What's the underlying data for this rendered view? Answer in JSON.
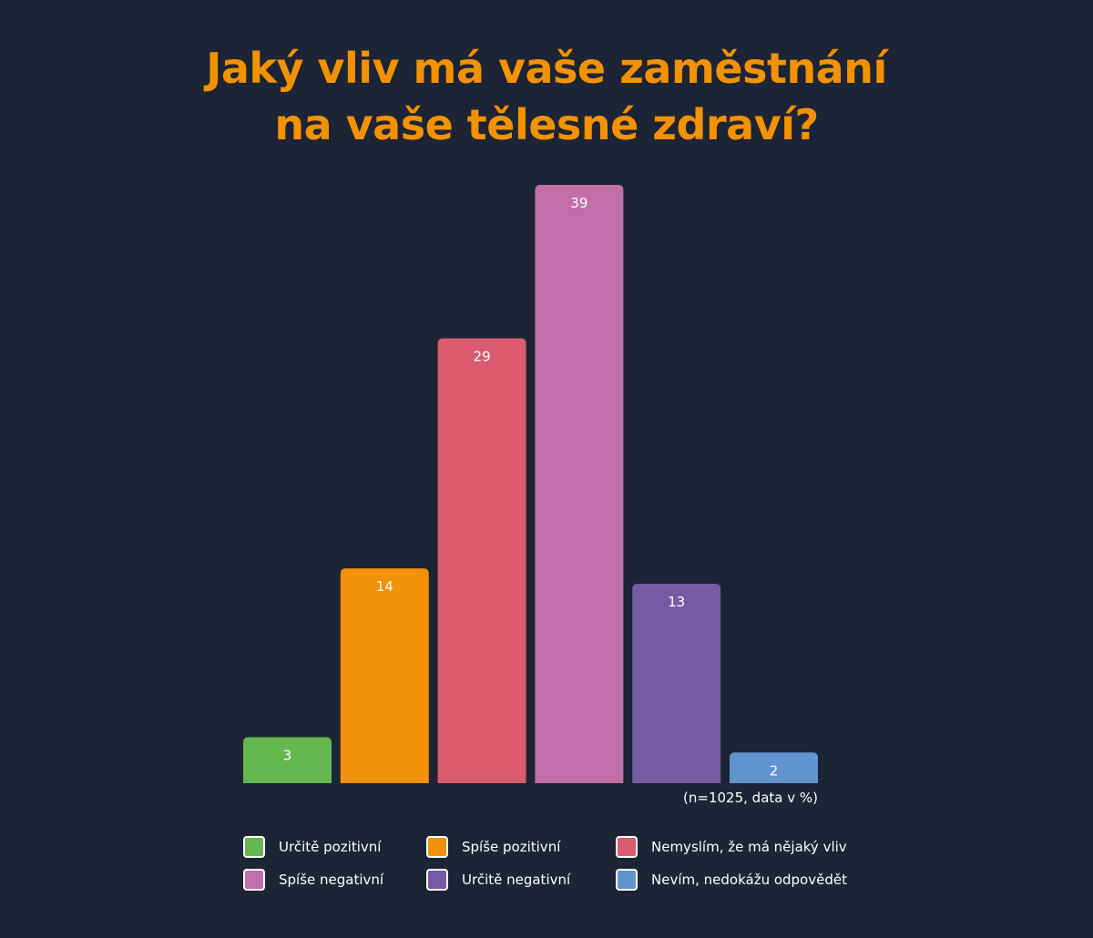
{
  "chart_data": {
    "type": "bar",
    "title": "Jaký vliv má vaše zaměstnání na vaše tělesné zdraví?",
    "title_lines": [
      "Jaký vliv má vaše zaměstnání",
      "na vaše tělesné zdraví?"
    ],
    "note": "(n=1025, data v %)",
    "categories": [
      "Určitě pozitivní",
      "Spíše pozitivní",
      "Nemyslím, že má nějaký vliv",
      "Spíše negativní",
      "Určitě negativní",
      "Nevím, nedokážu odpovědět"
    ],
    "values": [
      3,
      14,
      29,
      39,
      13,
      2
    ],
    "colors": [
      "#65b74f",
      "#f2910a",
      "#d95b6d",
      "#c06fa8",
      "#765ba4",
      "#5f94cf"
    ],
    "ylim": [
      0,
      39
    ],
    "grid": false,
    "legend": "bottom"
  },
  "colors": {
    "background": "#1c2435",
    "title": "#f39200",
    "text": "#ffffff"
  }
}
